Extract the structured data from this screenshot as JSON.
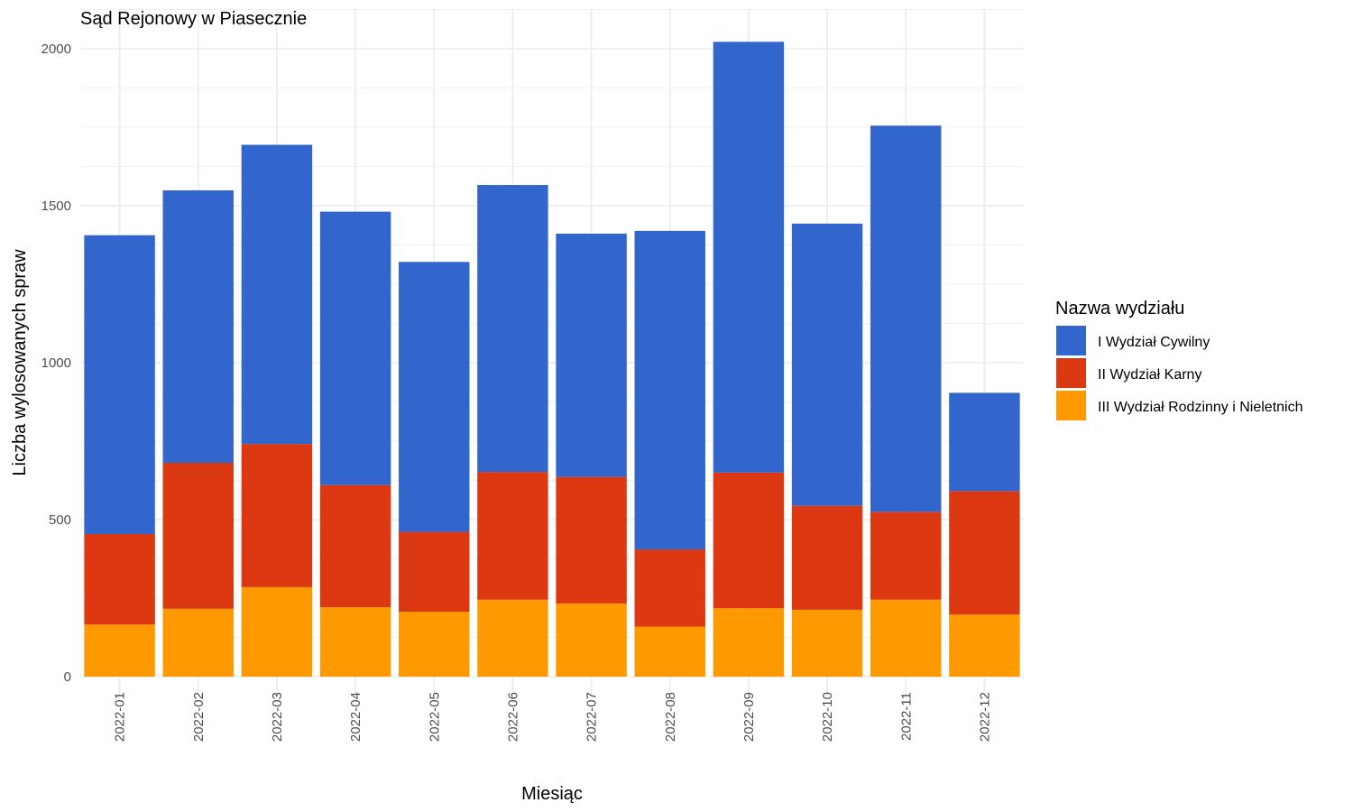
{
  "chart_data": {
    "type": "bar",
    "stacked": true,
    "title": "Sąd Rejonowy w Piasecznie",
    "xlabel": "Miesiąc",
    "ylabel": "Liczba wylosowanych spraw",
    "ylim": [
      0,
      2050
    ],
    "yticks": [
      "0",
      "500",
      "1000",
      "1500",
      "2000"
    ],
    "ytick_values": [
      0,
      500,
      1000,
      1500,
      2000
    ],
    "grid": true,
    "legend_title": "Nazwa wydziału",
    "legend_position": "right",
    "categories": [
      "2022-01",
      "2022-02",
      "2022-03",
      "2022-04",
      "2022-05",
      "2022-06",
      "2022-07",
      "2022-08",
      "2022-09",
      "2022-10",
      "2022-11",
      "2022-12"
    ],
    "series": [
      {
        "name": "I Wydział Cywilny",
        "color": "#3366CC",
        "values": [
          952,
          868,
          953,
          871,
          860,
          914,
          775,
          1015,
          1372,
          899,
          1230,
          313
        ]
      },
      {
        "name": "II Wydział Karny",
        "color": "#DC3912",
        "values": [
          288,
          465,
          456,
          389,
          254,
          407,
          403,
          246,
          432,
          331,
          280,
          393
        ]
      },
      {
        "name": "III Wydział Rodzinny i Nieletnich",
        "color": "#FF9900",
        "values": [
          166,
          216,
          285,
          221,
          207,
          245,
          233,
          159,
          218,
          213,
          245,
          198
        ]
      }
    ]
  }
}
